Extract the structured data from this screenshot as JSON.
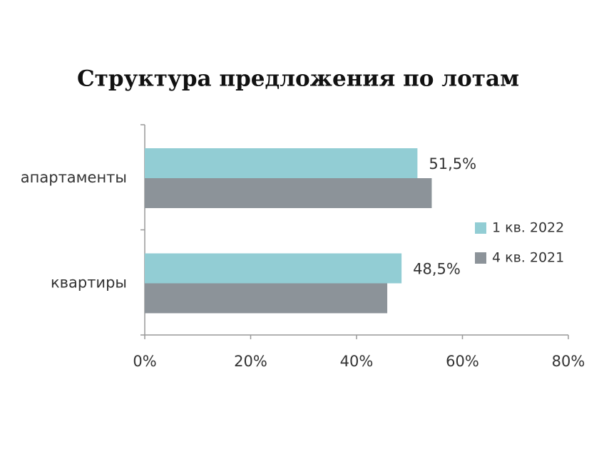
{
  "chart_data": {
    "type": "hbar",
    "title": "Структура предложения по лотам",
    "categories": [
      "апартаменты",
      "квартиры"
    ],
    "series": [
      {
        "name": "1 кв. 2022",
        "color": "#92cdd4",
        "values": [
          51.5,
          48.5
        ],
        "value_labels": [
          "51,5%",
          "48,5%"
        ]
      },
      {
        "name": "4 кв. 2021",
        "color": "#8c9399",
        "values": [
          54.2,
          45.8
        ]
      }
    ],
    "xlim": [
      0,
      80
    ],
    "xticks": [
      {
        "value": 0,
        "label": "0%"
      },
      {
        "value": 20,
        "label": "20%"
      },
      {
        "value": 40,
        "label": "40%"
      },
      {
        "value": 60,
        "label": "60%"
      },
      {
        "value": 80,
        "label": "80%"
      }
    ],
    "legend": "right",
    "grid": false
  }
}
